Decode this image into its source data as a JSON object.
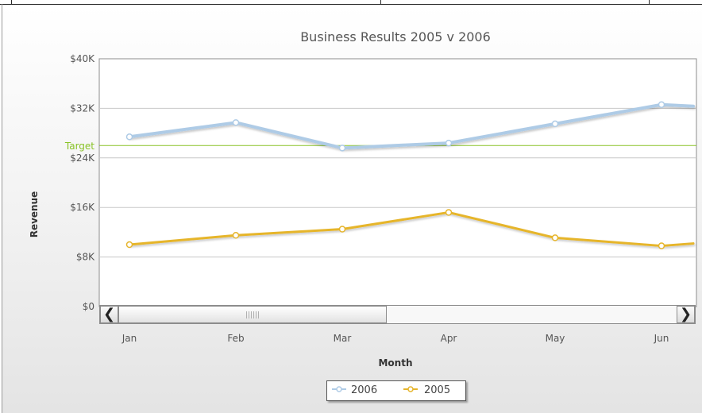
{
  "chart_data": {
    "type": "line",
    "title": "Business Results 2005 v 2006",
    "xlabel": "Month",
    "ylabel": "Revenue",
    "categories": [
      "Jan",
      "Feb",
      "Mar",
      "Apr",
      "May",
      "Jun"
    ],
    "series": [
      {
        "name": "2006",
        "color": "#aecbe6",
        "values": [
          27400,
          29700,
          25600,
          26400,
          29500,
          32600
        ]
      },
      {
        "name": "2005",
        "color": "#e6b52c",
        "values": [
          10000,
          11500,
          12500,
          15200,
          11100,
          9800
        ]
      }
    ],
    "y_ticks": [
      "$0",
      "$8K",
      "$16K",
      "$24K",
      "$32K",
      "$40K"
    ],
    "ylim": [
      0,
      40000
    ],
    "trendline": {
      "label": "Target",
      "value": 26000,
      "color": "#88c225"
    },
    "legend_position": "bottom-center",
    "grid": true
  }
}
